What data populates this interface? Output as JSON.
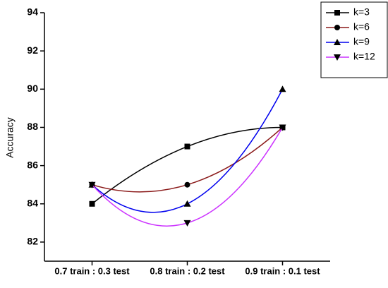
{
  "chart_data": {
    "type": "line",
    "y_label": "Accuracy",
    "categories": [
      "0.7 train : 0.3 test",
      "0.8 train : 0.2 test",
      "0.9 train : 0.1 test"
    ],
    "series": [
      {
        "name": "k=3",
        "color": "#000000",
        "marker": "square",
        "values": [
          84,
          87,
          88
        ]
      },
      {
        "name": "k=6",
        "color": "#8b1a1a",
        "marker": "circle",
        "values": [
          85,
          85,
          88
        ]
      },
      {
        "name": "k=9",
        "color": "#0000ee",
        "marker": "triangle-up",
        "values": [
          85,
          84,
          90
        ]
      },
      {
        "name": "k=12",
        "color": "#cc33ff",
        "marker": "triangle-down",
        "values": [
          85,
          83,
          88
        ]
      }
    ],
    "ylim": [
      81,
      94
    ],
    "yticks": [
      82,
      84,
      86,
      88,
      90,
      92,
      94
    ],
    "smooth": true,
    "legend": "top-right"
  }
}
